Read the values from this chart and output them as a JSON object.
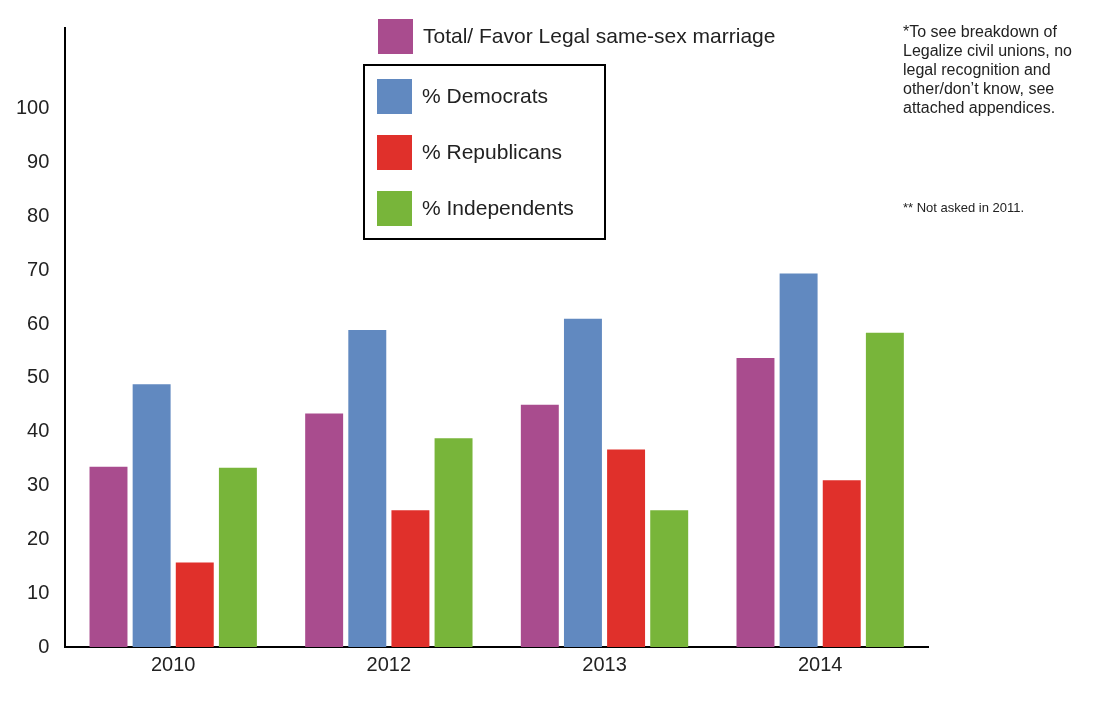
{
  "chart_data": {
    "type": "bar",
    "categories": [
      "2010",
      "2012",
      "2013",
      "2014"
    ],
    "series": [
      {
        "name": "Total/  Favor Legal same-sex marriage",
        "color": "#a94c8e",
        "values": [
          33.5,
          43.4,
          45,
          53.7
        ]
      },
      {
        "name": "% Democrats",
        "color": "#6189c0",
        "values": [
          48.8,
          58.9,
          61,
          69.4
        ]
      },
      {
        "name": "% Republicans",
        "color": "#e0302b",
        "values": [
          15.7,
          25.4,
          36.7,
          31
        ]
      },
      {
        "name": "% Independents",
        "color": "#78b53a",
        "values": [
          33.3,
          38.8,
          25.4,
          58.4
        ]
      }
    ],
    "ylim": [
      0,
      115
    ],
    "yticks": [
      0,
      10,
      20,
      30,
      40,
      50,
      60,
      70,
      80,
      90,
      100
    ],
    "grid": false,
    "legend": "top",
    "annotations": [
      "*To see breakdown of Legalize civil unions, no legal recognition and other/don’t know, see attached appendices.",
      "** Not asked in 2011."
    ]
  }
}
